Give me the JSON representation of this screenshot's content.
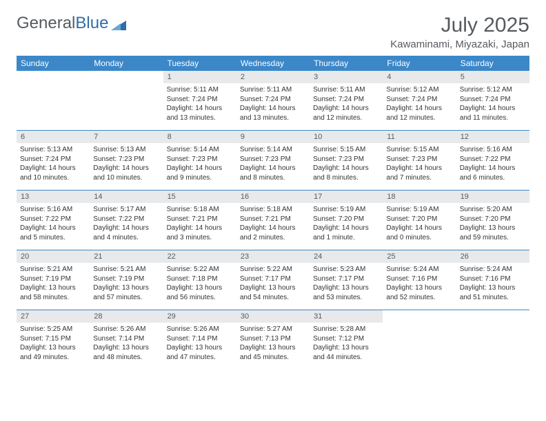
{
  "brand": {
    "part1": "General",
    "part2": "Blue"
  },
  "title": "July 2025",
  "location": "Kawaminami, Miyazaki, Japan",
  "daysOfWeek": [
    "Sunday",
    "Monday",
    "Tuesday",
    "Wednesday",
    "Thursday",
    "Friday",
    "Saturday"
  ],
  "colors": {
    "headerBlue": "#3b87c8",
    "rowDivider": "#3b87c8",
    "dayNumBg": "#e8e9ea",
    "text": "#333333",
    "titleGray": "#565a5e",
    "logoGray": "#555b60",
    "logoBlue": "#2f6da8",
    "background": "#ffffff"
  },
  "weeks": [
    [
      null,
      null,
      {
        "n": "1",
        "sr": "5:11 AM",
        "ss": "7:24 PM",
        "dl": "14 hours and 13 minutes."
      },
      {
        "n": "2",
        "sr": "5:11 AM",
        "ss": "7:24 PM",
        "dl": "14 hours and 13 minutes."
      },
      {
        "n": "3",
        "sr": "5:11 AM",
        "ss": "7:24 PM",
        "dl": "14 hours and 12 minutes."
      },
      {
        "n": "4",
        "sr": "5:12 AM",
        "ss": "7:24 PM",
        "dl": "14 hours and 12 minutes."
      },
      {
        "n": "5",
        "sr": "5:12 AM",
        "ss": "7:24 PM",
        "dl": "14 hours and 11 minutes."
      }
    ],
    [
      {
        "n": "6",
        "sr": "5:13 AM",
        "ss": "7:24 PM",
        "dl": "14 hours and 10 minutes."
      },
      {
        "n": "7",
        "sr": "5:13 AM",
        "ss": "7:23 PM",
        "dl": "14 hours and 10 minutes."
      },
      {
        "n": "8",
        "sr": "5:14 AM",
        "ss": "7:23 PM",
        "dl": "14 hours and 9 minutes."
      },
      {
        "n": "9",
        "sr": "5:14 AM",
        "ss": "7:23 PM",
        "dl": "14 hours and 8 minutes."
      },
      {
        "n": "10",
        "sr": "5:15 AM",
        "ss": "7:23 PM",
        "dl": "14 hours and 8 minutes."
      },
      {
        "n": "11",
        "sr": "5:15 AM",
        "ss": "7:23 PM",
        "dl": "14 hours and 7 minutes."
      },
      {
        "n": "12",
        "sr": "5:16 AM",
        "ss": "7:22 PM",
        "dl": "14 hours and 6 minutes."
      }
    ],
    [
      {
        "n": "13",
        "sr": "5:16 AM",
        "ss": "7:22 PM",
        "dl": "14 hours and 5 minutes."
      },
      {
        "n": "14",
        "sr": "5:17 AM",
        "ss": "7:22 PM",
        "dl": "14 hours and 4 minutes."
      },
      {
        "n": "15",
        "sr": "5:18 AM",
        "ss": "7:21 PM",
        "dl": "14 hours and 3 minutes."
      },
      {
        "n": "16",
        "sr": "5:18 AM",
        "ss": "7:21 PM",
        "dl": "14 hours and 2 minutes."
      },
      {
        "n": "17",
        "sr": "5:19 AM",
        "ss": "7:20 PM",
        "dl": "14 hours and 1 minute."
      },
      {
        "n": "18",
        "sr": "5:19 AM",
        "ss": "7:20 PM",
        "dl": "14 hours and 0 minutes."
      },
      {
        "n": "19",
        "sr": "5:20 AM",
        "ss": "7:20 PM",
        "dl": "13 hours and 59 minutes."
      }
    ],
    [
      {
        "n": "20",
        "sr": "5:21 AM",
        "ss": "7:19 PM",
        "dl": "13 hours and 58 minutes."
      },
      {
        "n": "21",
        "sr": "5:21 AM",
        "ss": "7:19 PM",
        "dl": "13 hours and 57 minutes."
      },
      {
        "n": "22",
        "sr": "5:22 AM",
        "ss": "7:18 PM",
        "dl": "13 hours and 56 minutes."
      },
      {
        "n": "23",
        "sr": "5:22 AM",
        "ss": "7:17 PM",
        "dl": "13 hours and 54 minutes."
      },
      {
        "n": "24",
        "sr": "5:23 AM",
        "ss": "7:17 PM",
        "dl": "13 hours and 53 minutes."
      },
      {
        "n": "25",
        "sr": "5:24 AM",
        "ss": "7:16 PM",
        "dl": "13 hours and 52 minutes."
      },
      {
        "n": "26",
        "sr": "5:24 AM",
        "ss": "7:16 PM",
        "dl": "13 hours and 51 minutes."
      }
    ],
    [
      {
        "n": "27",
        "sr": "5:25 AM",
        "ss": "7:15 PM",
        "dl": "13 hours and 49 minutes."
      },
      {
        "n": "28",
        "sr": "5:26 AM",
        "ss": "7:14 PM",
        "dl": "13 hours and 48 minutes."
      },
      {
        "n": "29",
        "sr": "5:26 AM",
        "ss": "7:14 PM",
        "dl": "13 hours and 47 minutes."
      },
      {
        "n": "30",
        "sr": "5:27 AM",
        "ss": "7:13 PM",
        "dl": "13 hours and 45 minutes."
      },
      {
        "n": "31",
        "sr": "5:28 AM",
        "ss": "7:12 PM",
        "dl": "13 hours and 44 minutes."
      },
      null,
      null
    ]
  ],
  "labels": {
    "sunrise": "Sunrise: ",
    "sunset": "Sunset: ",
    "daylight": "Daylight: "
  }
}
